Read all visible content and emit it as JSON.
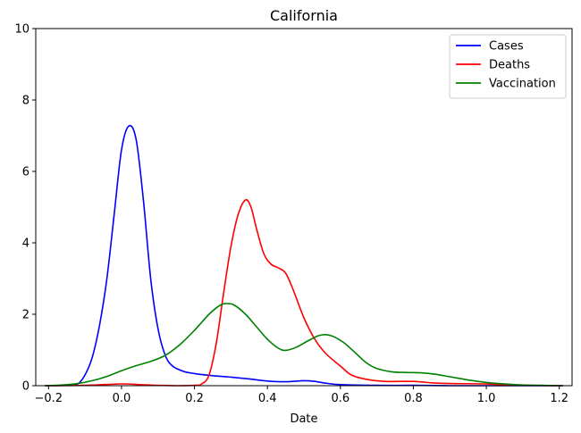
{
  "chart_data": {
    "type": "line",
    "title": "California",
    "xlabel": "Date",
    "ylabel": "",
    "xlim": [
      -0.235,
      1.235
    ],
    "ylim": [
      0,
      10
    ],
    "xticks": [
      -0.2,
      0.0,
      0.2,
      0.4,
      0.6,
      0.8,
      1.0,
      1.2
    ],
    "xtick_labels": [
      "−0.2",
      "0.0",
      "0.2",
      "0.4",
      "0.6",
      "0.8",
      "1.0",
      "1.2"
    ],
    "yticks": [
      0,
      2,
      4,
      6,
      8,
      10
    ],
    "ytick_labels": [
      "0",
      "2",
      "4",
      "6",
      "8",
      "10"
    ],
    "grid": false,
    "legend_position": "top-right",
    "series": [
      {
        "name": "Cases",
        "color": "#0000ff",
        "points": [
          [
            -0.21,
            0.0
          ],
          [
            -0.15,
            0.01
          ],
          [
            -0.12,
            0.05
          ],
          [
            -0.1,
            0.3
          ],
          [
            -0.08,
            0.8
          ],
          [
            -0.06,
            1.7
          ],
          [
            -0.04,
            3.0
          ],
          [
            -0.02,
            4.8
          ],
          [
            0.0,
            6.6
          ],
          [
            0.02,
            7.27
          ],
          [
            0.04,
            6.9
          ],
          [
            0.06,
            5.2
          ],
          [
            0.08,
            3.0
          ],
          [
            0.1,
            1.6
          ],
          [
            0.12,
            0.85
          ],
          [
            0.14,
            0.55
          ],
          [
            0.17,
            0.4
          ],
          [
            0.2,
            0.34
          ],
          [
            0.25,
            0.28
          ],
          [
            0.3,
            0.24
          ],
          [
            0.35,
            0.19
          ],
          [
            0.4,
            0.13
          ],
          [
            0.45,
            0.11
          ],
          [
            0.5,
            0.14
          ],
          [
            0.53,
            0.12
          ],
          [
            0.56,
            0.07
          ],
          [
            0.6,
            0.03
          ],
          [
            0.7,
            0.01
          ],
          [
            0.8,
            0.01
          ],
          [
            0.9,
            0.0
          ],
          [
            1.0,
            0.0
          ],
          [
            1.1,
            0.0
          ],
          [
            1.21,
            0.0
          ]
        ]
      },
      {
        "name": "Deaths",
        "color": "#ff0000",
        "points": [
          [
            -0.21,
            0.0
          ],
          [
            -0.1,
            0.01
          ],
          [
            0.0,
            0.05
          ],
          [
            0.05,
            0.03
          ],
          [
            0.1,
            0.01
          ],
          [
            0.15,
            0.0
          ],
          [
            0.2,
            0.01
          ],
          [
            0.22,
            0.05
          ],
          [
            0.24,
            0.3
          ],
          [
            0.26,
            1.2
          ],
          [
            0.28,
            2.6
          ],
          [
            0.3,
            3.9
          ],
          [
            0.32,
            4.8
          ],
          [
            0.34,
            5.2
          ],
          [
            0.355,
            5.0
          ],
          [
            0.37,
            4.4
          ],
          [
            0.39,
            3.7
          ],
          [
            0.41,
            3.4
          ],
          [
            0.43,
            3.3
          ],
          [
            0.45,
            3.15
          ],
          [
            0.47,
            2.7
          ],
          [
            0.5,
            1.9
          ],
          [
            0.53,
            1.3
          ],
          [
            0.56,
            0.9
          ],
          [
            0.6,
            0.55
          ],
          [
            0.63,
            0.3
          ],
          [
            0.67,
            0.18
          ],
          [
            0.72,
            0.12
          ],
          [
            0.8,
            0.12
          ],
          [
            0.85,
            0.08
          ],
          [
            0.9,
            0.06
          ],
          [
            1.0,
            0.05
          ],
          [
            1.05,
            0.02
          ],
          [
            1.1,
            0.01
          ],
          [
            1.21,
            0.0
          ]
        ]
      },
      {
        "name": "Vaccination",
        "color": "#008000",
        "points": [
          [
            -0.21,
            0.0
          ],
          [
            -0.16,
            0.02
          ],
          [
            -0.12,
            0.06
          ],
          [
            -0.08,
            0.14
          ],
          [
            -0.04,
            0.26
          ],
          [
            0.0,
            0.42
          ],
          [
            0.04,
            0.56
          ],
          [
            0.08,
            0.68
          ],
          [
            0.12,
            0.85
          ],
          [
            0.16,
            1.15
          ],
          [
            0.2,
            1.55
          ],
          [
            0.24,
            2.0
          ],
          [
            0.27,
            2.25
          ],
          [
            0.29,
            2.3
          ],
          [
            0.31,
            2.25
          ],
          [
            0.34,
            2.0
          ],
          [
            0.37,
            1.65
          ],
          [
            0.4,
            1.3
          ],
          [
            0.43,
            1.05
          ],
          [
            0.45,
            0.99
          ],
          [
            0.48,
            1.08
          ],
          [
            0.51,
            1.25
          ],
          [
            0.54,
            1.4
          ],
          [
            0.56,
            1.43
          ],
          [
            0.58,
            1.38
          ],
          [
            0.61,
            1.2
          ],
          [
            0.64,
            0.93
          ],
          [
            0.67,
            0.65
          ],
          [
            0.7,
            0.48
          ],
          [
            0.74,
            0.39
          ],
          [
            0.78,
            0.37
          ],
          [
            0.82,
            0.36
          ],
          [
            0.86,
            0.32
          ],
          [
            0.9,
            0.25
          ],
          [
            0.95,
            0.16
          ],
          [
            1.0,
            0.09
          ],
          [
            1.05,
            0.05
          ],
          [
            1.1,
            0.02
          ],
          [
            1.15,
            0.01
          ],
          [
            1.21,
            0.0
          ]
        ]
      }
    ]
  }
}
